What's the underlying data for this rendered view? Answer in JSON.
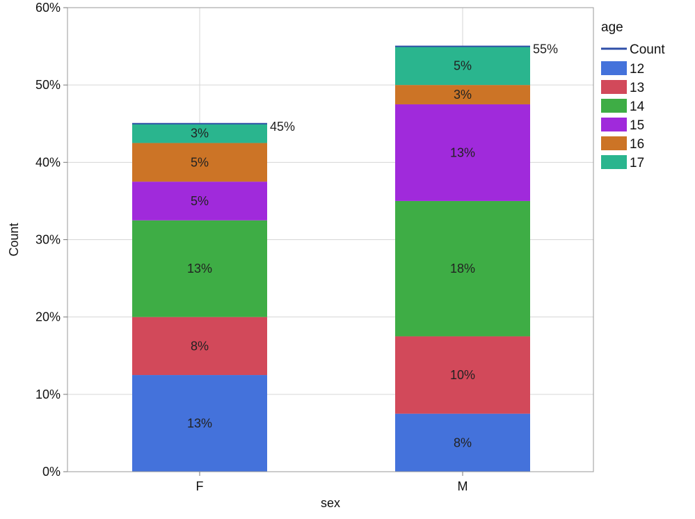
{
  "chart_data": {
    "type": "bar",
    "stacked": true,
    "categories": [
      "F",
      "M"
    ],
    "xlabel": "sex",
    "ylabel": "Count",
    "ylim": [
      0,
      60
    ],
    "y_ticks": [
      "0%",
      "10%",
      "20%",
      "30%",
      "40%",
      "50%",
      "60%"
    ],
    "grid": true,
    "legend": {
      "title": "age",
      "position": "right",
      "line_entry": "Count",
      "line_color": "#2F4FA8"
    },
    "series": [
      {
        "name": "12",
        "color": "#4472DB",
        "values": [
          12.5,
          7.5
        ],
        "labels": [
          "13%",
          "8%"
        ]
      },
      {
        "name": "13",
        "color": "#D2495A",
        "values": [
          7.5,
          10.0
        ],
        "labels": [
          "8%",
          "10%"
        ]
      },
      {
        "name": "14",
        "color": "#3EAD45",
        "values": [
          12.5,
          17.5
        ],
        "labels": [
          "13%",
          "18%"
        ]
      },
      {
        "name": "15",
        "color": "#A02ADB",
        "values": [
          5.0,
          12.5
        ],
        "labels": [
          "5%",
          "13%"
        ]
      },
      {
        "name": "16",
        "color": "#CC7426",
        "values": [
          5.0,
          2.5
        ],
        "labels": [
          "5%",
          "3%"
        ]
      },
      {
        "name": "17",
        "color": "#2AB58E",
        "values": [
          2.5,
          5.0
        ],
        "labels": [
          "3%",
          "5%"
        ]
      }
    ],
    "totals": [
      45,
      55
    ],
    "total_labels": [
      "45%",
      "55%"
    ]
  }
}
